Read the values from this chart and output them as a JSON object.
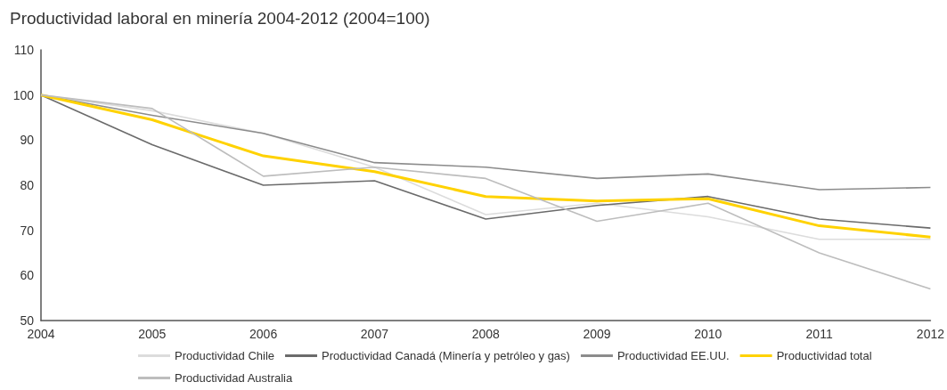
{
  "chart_data": {
    "type": "line",
    "title": "Productividad laboral en minería 2004-2012 (2004=100)",
    "x": [
      2004,
      2005,
      2006,
      2007,
      2008,
      2009,
      2010,
      2011,
      2012
    ],
    "xlim": [
      2004,
      2012
    ],
    "xticks": [
      2004,
      2005,
      2006,
      2007,
      2008,
      2009,
      2010,
      2011,
      2012
    ],
    "ylim": [
      50,
      110
    ],
    "yticks": [
      50,
      60,
      70,
      80,
      90,
      100,
      110
    ],
    "grid": false,
    "legend": "bottom",
    "marker": "none",
    "line_style": "solid",
    "series": [
      {
        "name": "Productividad Chile",
        "color": "#dcdcdc",
        "values": [
          100,
          96.5,
          91.5,
          84,
          73.5,
          76,
          73,
          68,
          68
        ]
      },
      {
        "name": "Productividad Canadá (Minería y petróleo y gas)",
        "color": "#6b6b6b",
        "values": [
          100,
          89,
          80,
          81,
          72.5,
          75.5,
          77.5,
          72.5,
          70.5
        ]
      },
      {
        "name": "Productividad EE.UU.",
        "color": "#8c8c8c",
        "values": [
          100,
          95.5,
          91.5,
          85,
          84,
          81.5,
          82.5,
          79,
          79.5
        ]
      },
      {
        "name": "Productividad total",
        "color": "#ffd200",
        "values": [
          100,
          94.5,
          86.5,
          83,
          77.5,
          76.5,
          77,
          71,
          68.5
        ]
      },
      {
        "name": "Productividad Australia",
        "color": "#bdbdbd",
        "values": [
          100,
          97,
          82,
          84,
          81.5,
          72,
          76,
          65,
          57
        ]
      }
    ]
  }
}
